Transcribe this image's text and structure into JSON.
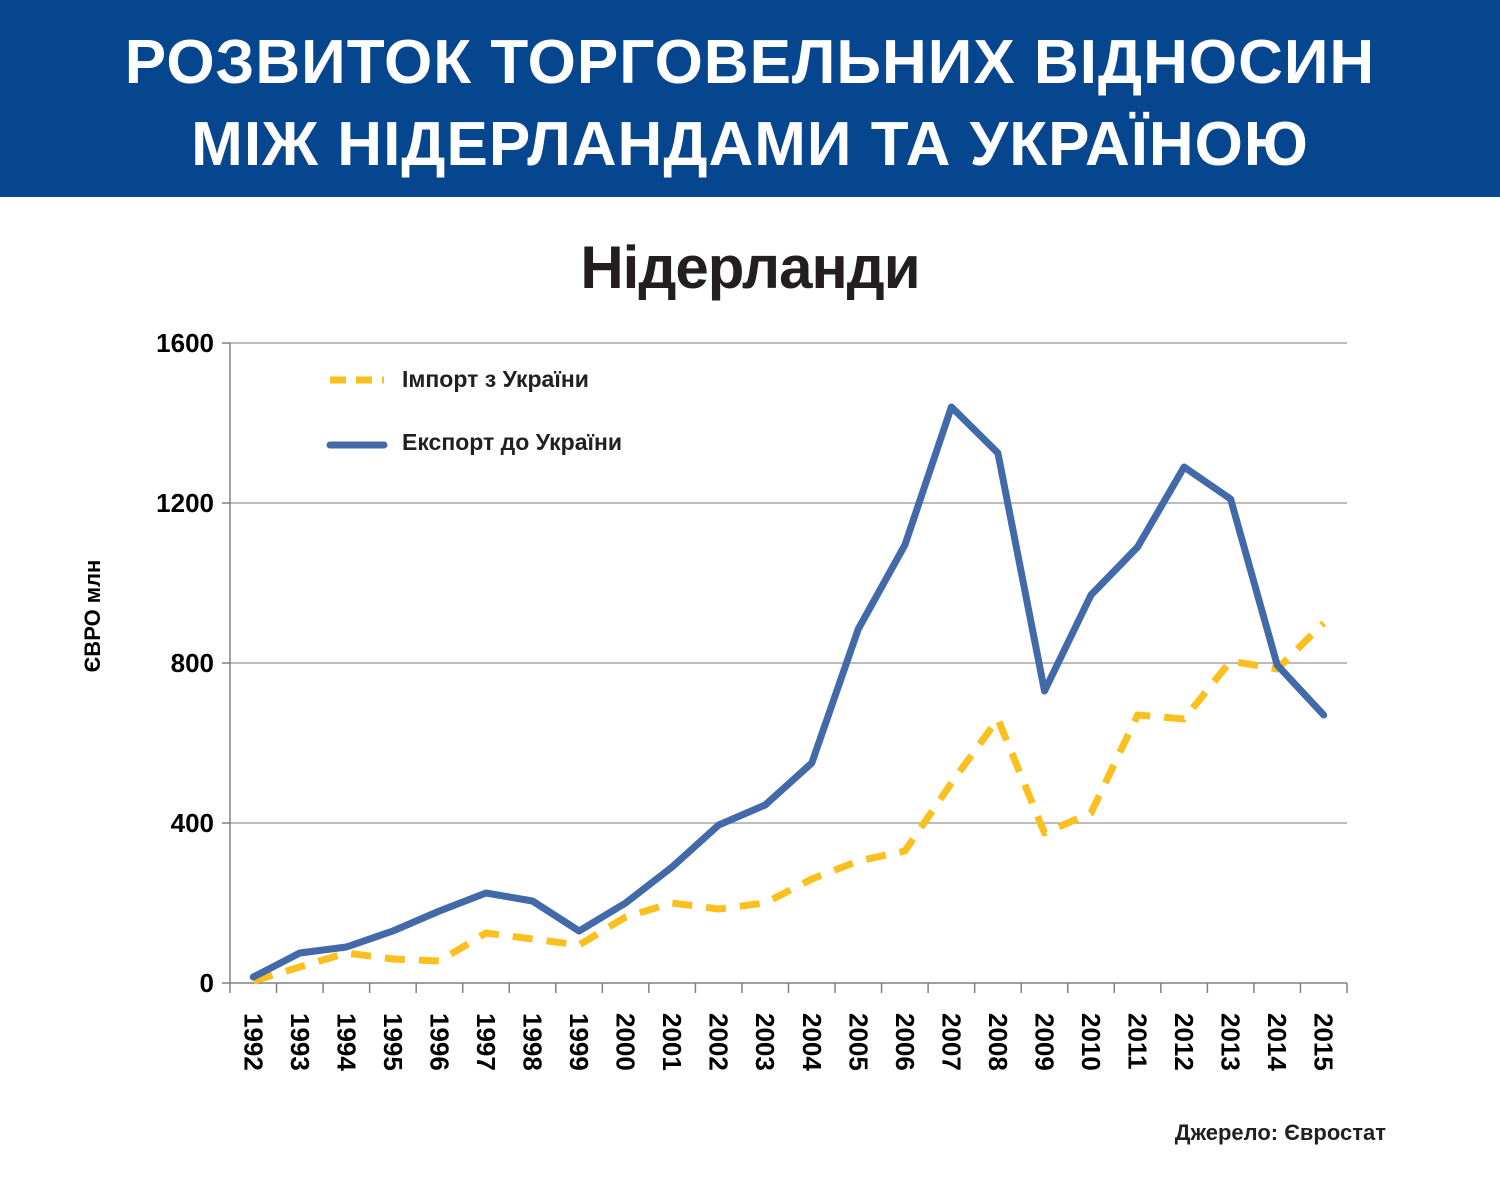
{
  "header": {
    "title_line1": "РОЗВИТОК ТОРГОВЕЛЬНИХ ВІДНОСИН",
    "title_line2": "МІЖ НІДЕРЛАНДАМИ ТА УКРАЇНОЮ"
  },
  "source": "Джерело: Євростат",
  "colors": {
    "banner": "#05468f",
    "import": "#fbc01d",
    "export": "#4269a8",
    "grid": "#a6a6a6"
  },
  "chart_data": {
    "type": "line",
    "title": "Нідерланди",
    "ylabel": "ЄВРО  млн",
    "xlabel": "",
    "ylim": [
      0,
      1600
    ],
    "yticks": [
      0,
      400,
      800,
      1200,
      1600
    ],
    "grid": true,
    "legend_position": "top-left",
    "categories": [
      "1992",
      "1993",
      "1994",
      "1995",
      "1996",
      "1997",
      "1998",
      "1999",
      "2000",
      "2001",
      "2002",
      "2003",
      "2004",
      "2005",
      "2006",
      "2007",
      "2008",
      "2009",
      "2010",
      "2011",
      "2012",
      "2013",
      "2014",
      "2015"
    ],
    "series": [
      {
        "name": "Імпорт з України",
        "style": "dashed",
        "values": [
          5,
          40,
          75,
          60,
          55,
          125,
          110,
          95,
          165,
          200,
          185,
          200,
          260,
          305,
          330,
          500,
          660,
          375,
          425,
          670,
          660,
          805,
          785,
          900
        ]
      },
      {
        "name": "Експорт до України",
        "style": "solid",
        "values": [
          15,
          75,
          90,
          130,
          180,
          225,
          205,
          130,
          200,
          290,
          395,
          445,
          550,
          885,
          1095,
          1440,
          1325,
          730,
          970,
          1090,
          1290,
          1210,
          795,
          670
        ]
      }
    ]
  }
}
